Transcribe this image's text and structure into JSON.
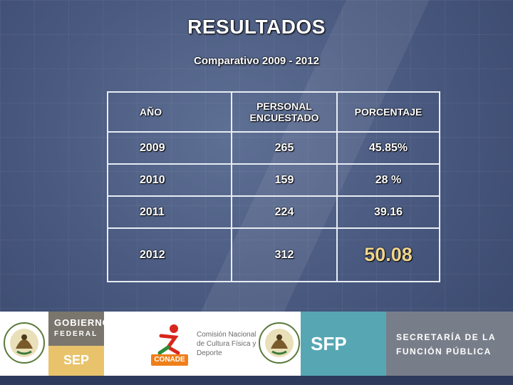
{
  "title": "RESULTADOS",
  "subtitle": "Comparativo 2009 - 2012",
  "table": {
    "headers": [
      "AÑO",
      "PERSONAL ENCUESTADO",
      "PORCENTAJE"
    ],
    "rows": [
      {
        "year": "2009",
        "staff": "265",
        "percent": "45.85%"
      },
      {
        "year": "2010",
        "staff": "159",
        "percent": "28 %"
      },
      {
        "year": "2011",
        "staff": "224",
        "percent": "39.16"
      },
      {
        "year": "2012",
        "staff": "312",
        "percent": "50.08"
      }
    ]
  },
  "footer": {
    "gobierno_line1": "GOBIERNO",
    "gobierno_line2": "FEDERAL",
    "sep": "SEP",
    "conade_label": "CONADE",
    "conade_text": "Comisión Nacional de Cultura Física y Deporte",
    "sfp": "SFP",
    "sfp_line1": "SECRETARÍA DE LA",
    "sfp_line2": "FUNCIÓN PÚBLICA"
  }
}
